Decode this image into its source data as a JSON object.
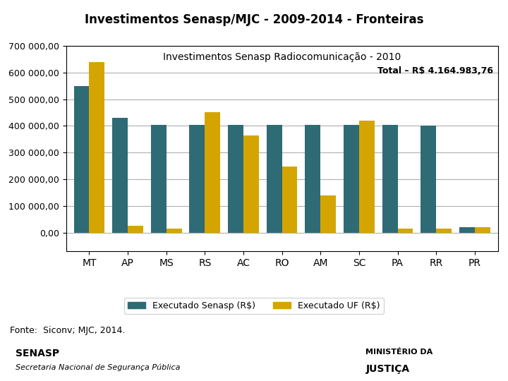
{
  "chart_data": {
    "type": "bar",
    "title": "Investimentos Senasp/MJC - 2009-2014 - Fronteiras",
    "subtitle": "Investimentos Senasp Radiocomunicação - 2010",
    "annotations": [
      "Total – R$ 4.164.983,76",
      "Fonte:  Siconv; MJC, 2014.",
      "SENASP",
      "Secretaria Nacional de Segurança Pública",
      "MINISTÉRIO DA",
      "JUSTIÇA"
    ],
    "categories": [
      "MT",
      "AP",
      "MS",
      "RS",
      "AC",
      "RO",
      "AM",
      "SC",
      "PA",
      "RR",
      "PR"
    ],
    "series": [
      {
        "name": "Executado Senasp (R$)",
        "color": "#2E6B75",
        "values": [
          550000,
          430000,
          405000,
          405000,
          405000,
          405000,
          405000,
          405000,
          405000,
          400000,
          20000
        ]
      },
      {
        "name": "Executado UF (R$)",
        "color": "#D4A500",
        "values": [
          640000,
          25000,
          15000,
          450000,
          365000,
          248000,
          140000,
          420000,
          15000,
          15000,
          20000
        ]
      }
    ],
    "ylim": [
      -70000,
      700000
    ],
    "yticks": [
      {
        "value": 0,
        "label": "0,00"
      },
      {
        "value": 100000,
        "label": "100 000,00"
      },
      {
        "value": 200000,
        "label": "200 000,00"
      },
      {
        "value": 300000,
        "label": "300 000,00"
      },
      {
        "value": 400000,
        "label": "400 000,00"
      },
      {
        "value": 500000,
        "label": "500 000,00"
      },
      {
        "value": 600000,
        "label": "600 000,00"
      },
      {
        "value": 700000,
        "label": "700 000,00"
      }
    ],
    "grid": "y",
    "legend": "lower center"
  }
}
